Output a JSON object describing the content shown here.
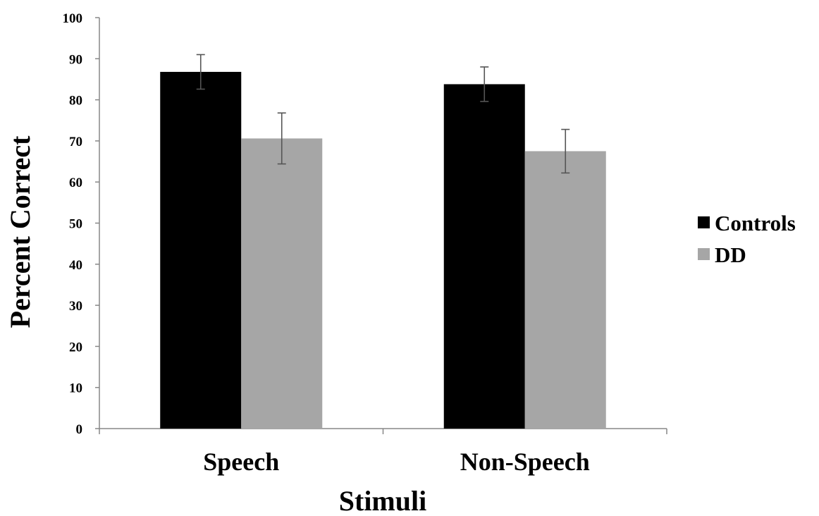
{
  "chart_data": {
    "type": "bar",
    "title": "",
    "xlabel": "Stimuli",
    "ylabel": "Percent Correct",
    "categories": [
      "Speech",
      "Non-Speech"
    ],
    "series": [
      {
        "name": "Controls",
        "color": "#000000",
        "values": [
          86.8,
          83.8
        ],
        "error": [
          4.2,
          4.2
        ]
      },
      {
        "name": "DD",
        "color": "#a6a6a6",
        "values": [
          70.6,
          67.5
        ],
        "error": [
          6.2,
          5.3
        ]
      }
    ],
    "ylim": [
      0,
      100
    ],
    "yticks": [
      "0",
      "10",
      "20",
      "30",
      "40",
      "50",
      "60",
      "70",
      "80",
      "90",
      "100"
    ],
    "grid": false,
    "legend_position": "right"
  }
}
